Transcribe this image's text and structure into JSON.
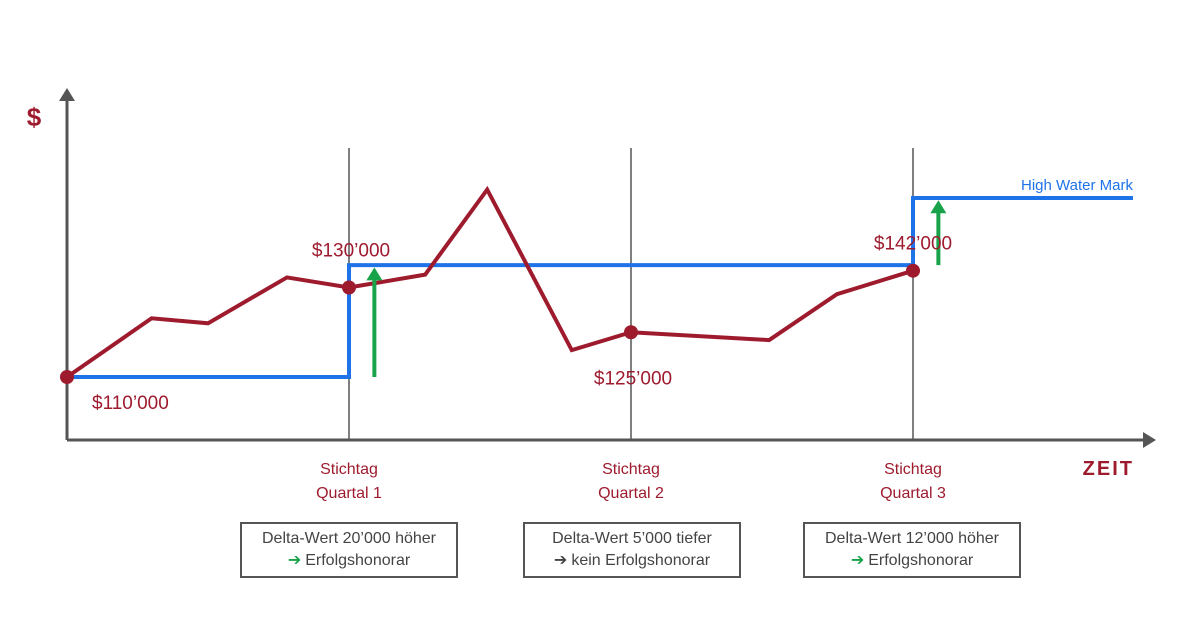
{
  "chart_data": {
    "type": "line",
    "ylabel": "$",
    "xlabel": "ZEIT",
    "series": [
      {
        "values": [
          {
            "x": 0,
            "y": 110000
          },
          {
            "x": 0.3,
            "y": 120500
          },
          {
            "x": 0.5,
            "y": 119600
          },
          {
            "x": 0.78,
            "y": 127800
          },
          {
            "x": 1.0,
            "y": 126000
          },
          {
            "x": 1.27,
            "y": 128300
          },
          {
            "x": 1.49,
            "y": 143500
          },
          {
            "x": 1.79,
            "y": 114800
          },
          {
            "x": 2.0,
            "y": 118000
          },
          {
            "x": 2.49,
            "y": 116600
          },
          {
            "x": 2.73,
            "y": 124800
          },
          {
            "x": 3.0,
            "y": 129000
          }
        ],
        "color": "#9e1b2e"
      },
      {
        "name": "High Water Mark",
        "values": [
          {
            "x": 0,
            "y": 110000
          },
          {
            "x": 1.0,
            "y": 110000
          },
          {
            "x": 1.0,
            "y": 130000
          },
          {
            "x": 3.0,
            "y": 130000
          },
          {
            "x": 3.0,
            "y": 142000
          },
          {
            "x": 3.78,
            "y": 142000
          }
        ],
        "color": "#1f73e8"
      }
    ],
    "markers": [
      {
        "x": 0,
        "y": 110000,
        "label": "$110’000",
        "label_pos": "below-right"
      },
      {
        "x": 1,
        "y": 126000,
        "label": "$130’000",
        "label_pos": "above-left"
      },
      {
        "x": 2,
        "y": 118000,
        "label": "$125’000",
        "label_pos": "below"
      },
      {
        "x": 3,
        "y": 129000,
        "label": "$142’000",
        "label_pos": "above"
      }
    ],
    "x_ticks": [
      {
        "x": 1,
        "line1": "Stichtag",
        "line2": "Quartal 1"
      },
      {
        "x": 2,
        "line1": "Stichtag",
        "line2": "Quartal 2"
      },
      {
        "x": 3,
        "line1": "Stichtag",
        "line2": "Quartal 3"
      }
    ],
    "up_arrows": [
      {
        "x": 1.09,
        "y_from": 110000,
        "y_to": 129600
      },
      {
        "x": 3.09,
        "y_from": 130000,
        "y_to": 141600
      }
    ],
    "xlim": [
      0,
      3.78
    ],
    "ylim": [
      98000,
      148000
    ],
    "grid": false,
    "colors": {
      "accent": "#9e1b2e",
      "hwm": "#1f73e8",
      "axis": "#555555",
      "up_arrow": "#18a34a"
    }
  },
  "boxes": [
    {
      "line1": "Delta-Wert 20’000 höher",
      "arrow": "➔",
      "arrow_color": "#18a34a",
      "line2": "Erfolgshonorar"
    },
    {
      "line1": "Delta-Wert 5’000 tiefer",
      "arrow": "➔",
      "arrow_color": "#444444",
      "line2": "kein Erfolgshonorar"
    },
    {
      "line1": "Delta-Wert 12’000 höher",
      "arrow": "➔",
      "arrow_color": "#18a34a",
      "line2": "Erfolgshonorar"
    }
  ]
}
